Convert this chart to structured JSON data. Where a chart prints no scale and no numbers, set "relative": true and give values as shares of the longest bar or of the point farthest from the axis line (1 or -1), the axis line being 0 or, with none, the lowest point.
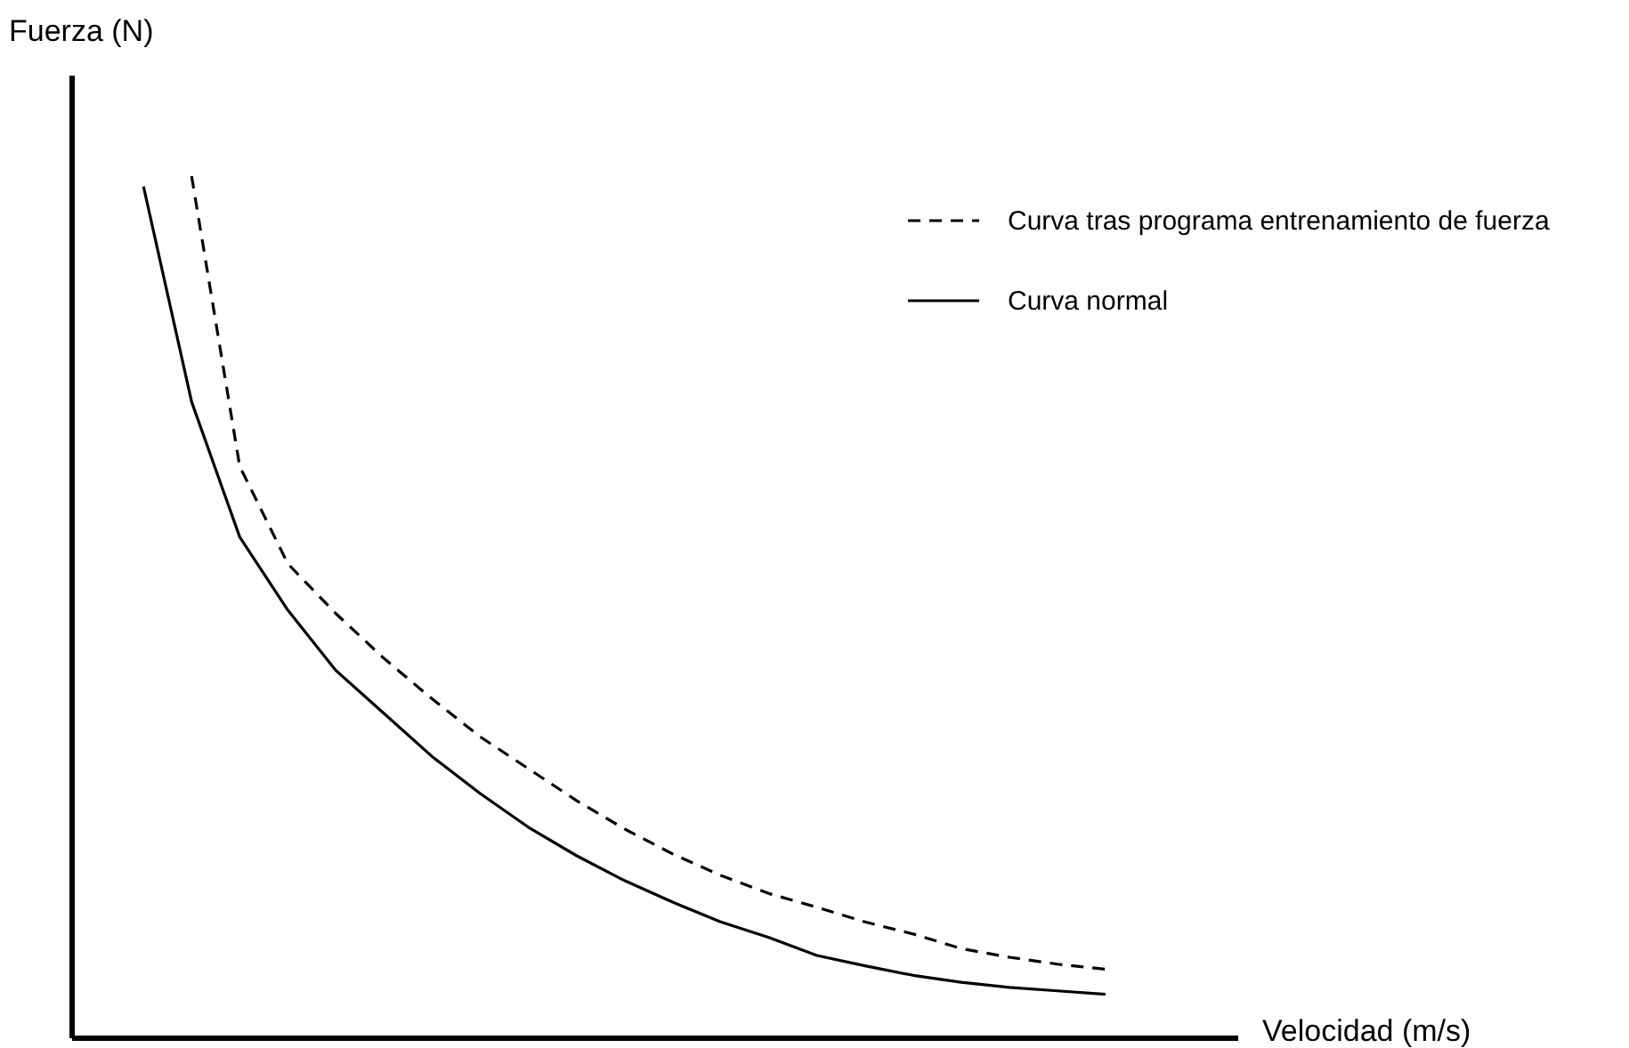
{
  "chart_data": {
    "type": "line",
    "relative": true,
    "xlabel": "Velocidad (m/s)",
    "ylabel": "Fuerza (N)",
    "legend": "top right",
    "marker": "none",
    "categories": [
      null,
      null,
      null,
      null,
      null,
      null,
      null,
      null,
      null,
      null,
      null,
      null,
      null,
      null,
      null,
      null,
      null,
      null,
      null,
      null,
      null
    ],
    "series": [
      {
        "name": "Curva tras programa entrenamiento de fuerza",
        "color": "#000000",
        "line_style": "dashed",
        "values": [
          null,
          1.0,
          0.663,
          0.55,
          0.492,
          0.44,
          0.393,
          0.349,
          0.312,
          0.275,
          0.242,
          0.213,
          0.188,
          0.167,
          0.151,
          0.134,
          0.12,
          0.103,
          0.093,
          0.085,
          0.079
        ]
      },
      {
        "name": "Curva normal",
        "color": "#000000",
        "line_style": "solid",
        "values": [
          0.988,
          0.738,
          0.581,
          0.496,
          0.426,
          0.376,
          0.326,
          0.283,
          0.244,
          0.211,
          0.182,
          0.157,
          0.134,
          0.116,
          0.095,
          0.083,
          0.072,
          0.064,
          0.058,
          0.054,
          0.05
        ]
      }
    ]
  }
}
